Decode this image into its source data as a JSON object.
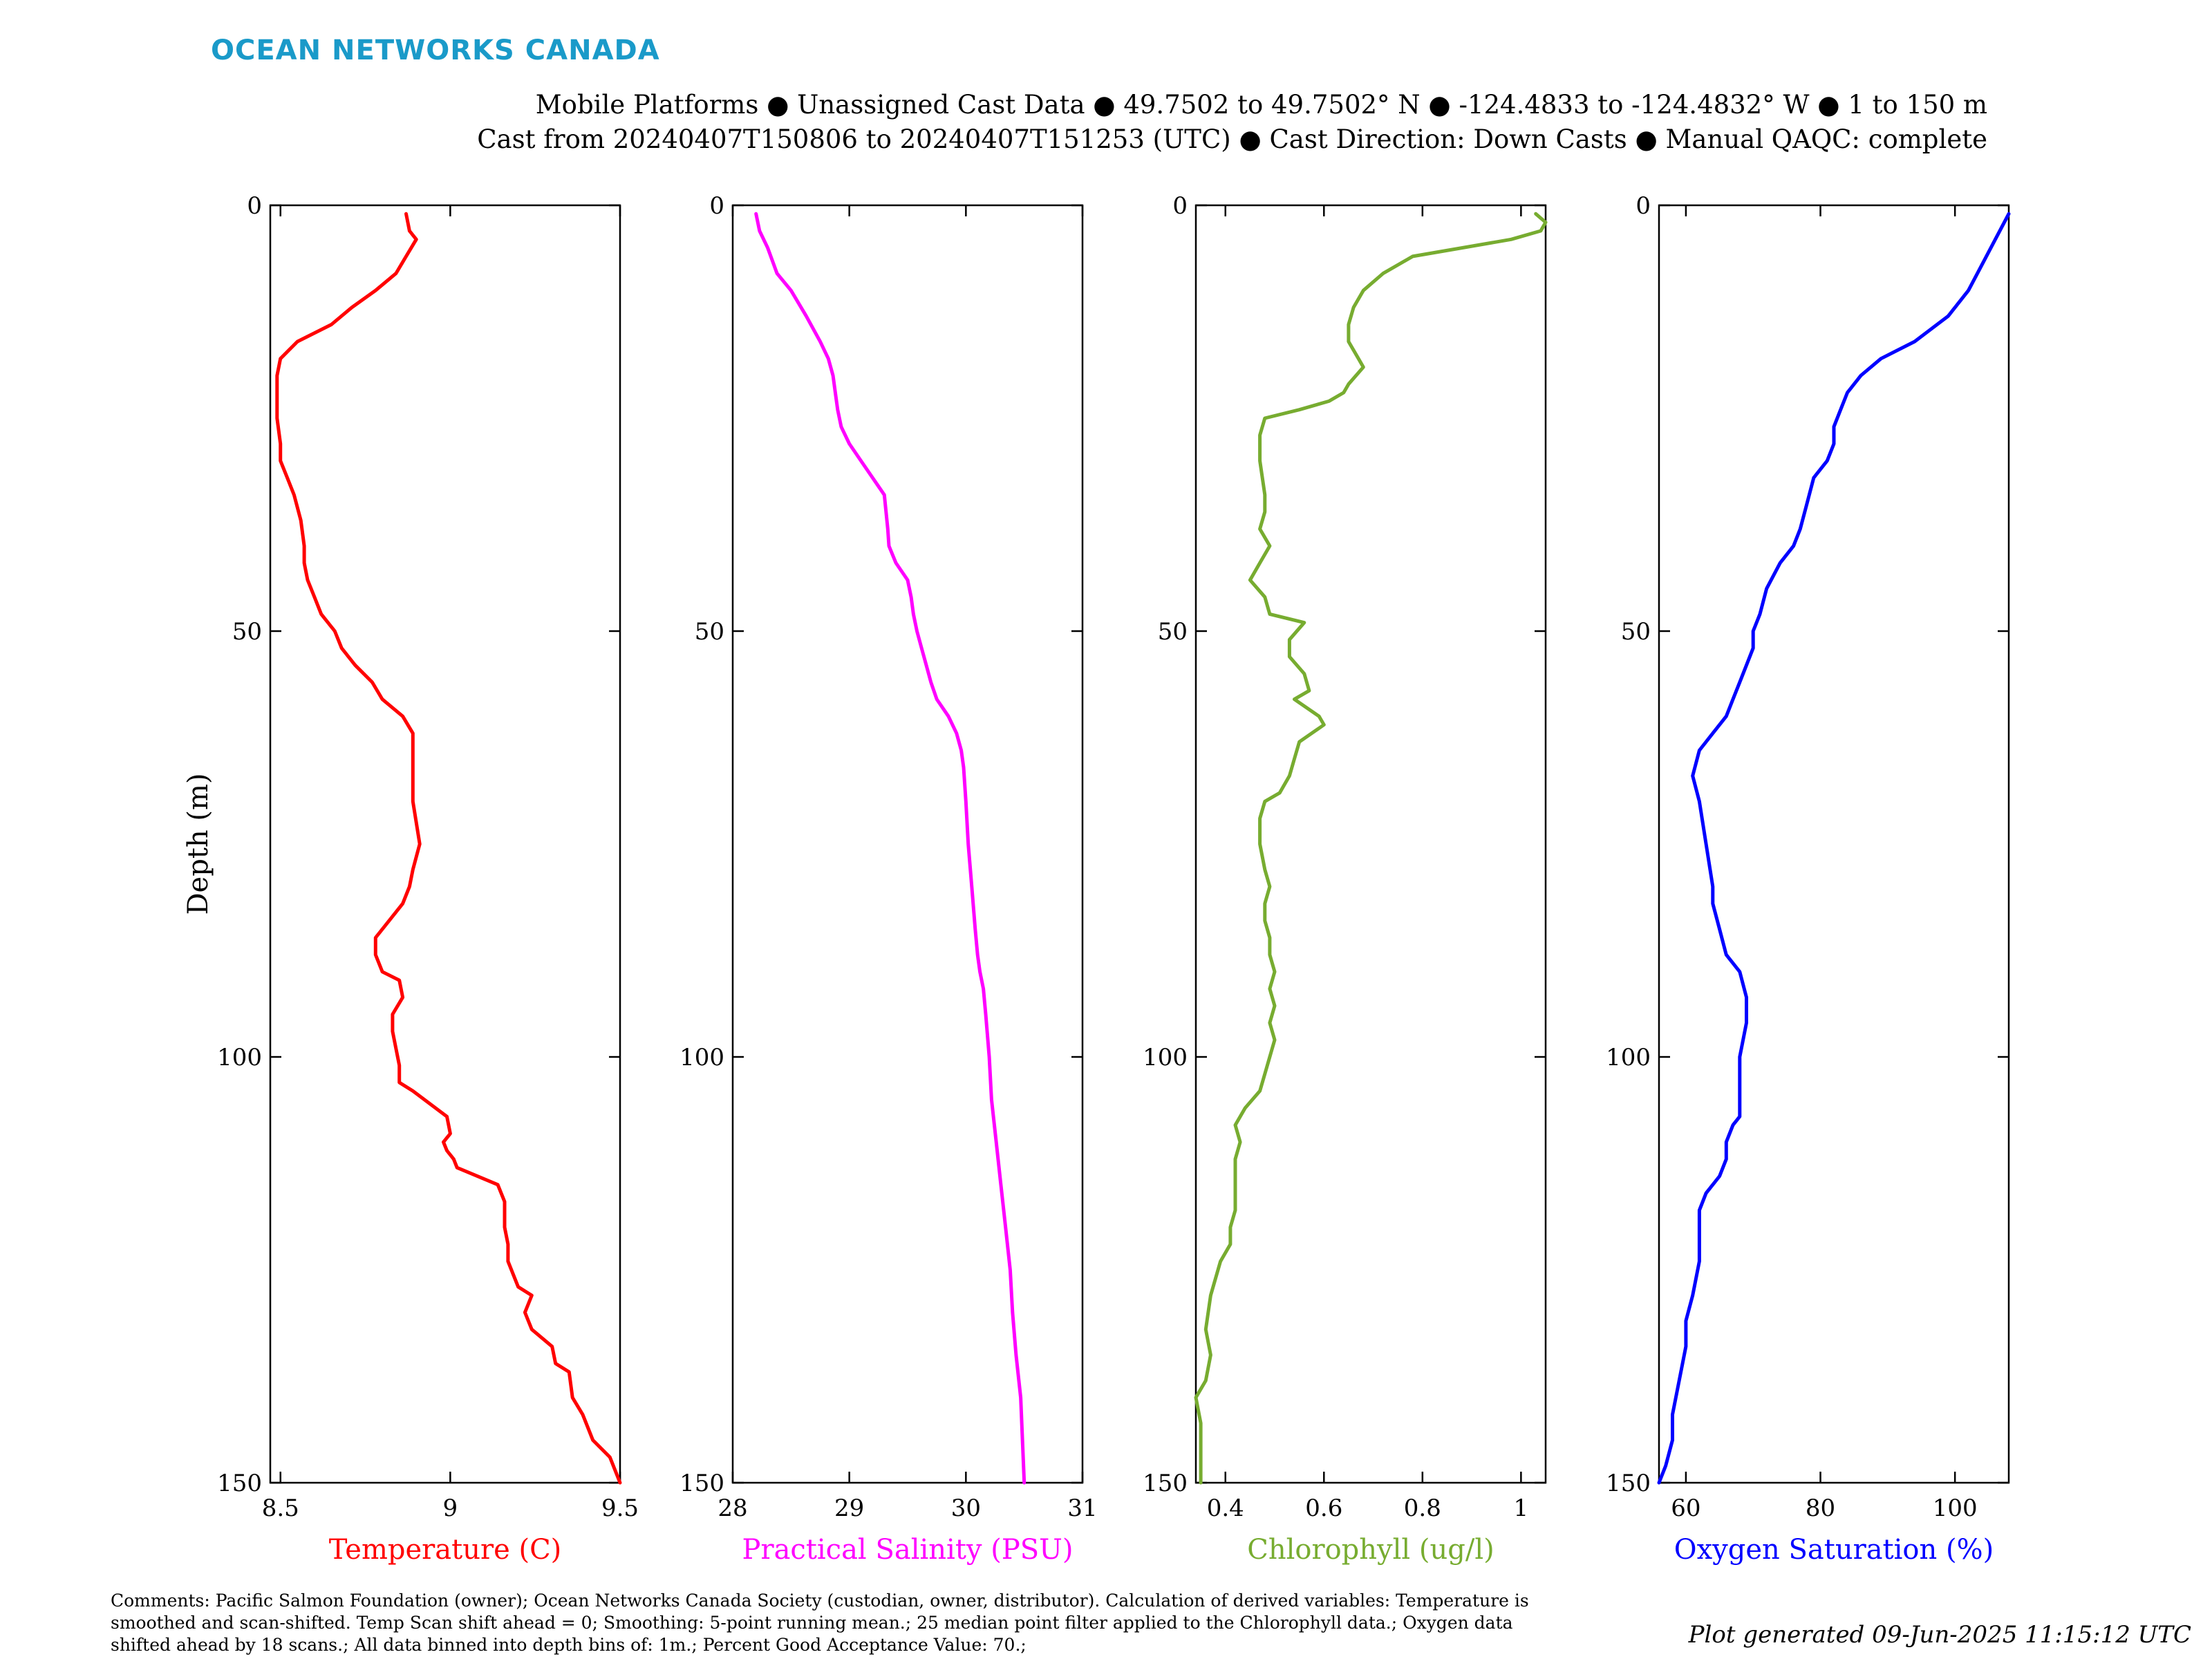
{
  "brand": "OCEAN NETWORKS CANADA",
  "header_line1": "Mobile Platforms ● Unassigned Cast Data ● 49.7502 to 49.7502° N ● -124.4833 to -124.4832° W ● 1 to 150 m",
  "header_line2": "Cast from 20240407T150806 to 20240407T151253 (UTC) ● Cast Direction: Down Casts ● Manual QAQC: complete",
  "comments": "Comments: Pacific Salmon Foundation (owner); Ocean Networks Canada Society (custodian, owner, distributor). Calculation of derived variables: Temperature is smoothed and scan-shifted. Temp Scan shift ahead = 0; Smoothing: 5-point running mean.; 25 median point filter applied to the Chlorophyll data.; Oxygen data shifted ahead by 18 scans.; All data binned into depth bins of: 1m.; Percent Good Acceptance Value: 70.;",
  "generated": "Plot generated 09-Jun-2025 11:15:12 UTC",
  "colors": {
    "brand": "#1a9ac9",
    "temperature": "#ff0000",
    "salinity": "#ff00ff",
    "chlorophyll": "#77ac30",
    "oxygen": "#0000ff"
  },
  "chart_data": [
    {
      "type": "line",
      "xlabel": "Temperature (C)",
      "ylabel": "Depth (m)",
      "color": "#ff0000",
      "xlim": [
        8.47,
        9.5
      ],
      "ylim": [
        0,
        150
      ],
      "y_reversed": true,
      "xticks": [
        8.5,
        9,
        9.5
      ],
      "xticklabels": [
        "8.5",
        "9",
        "9.5"
      ],
      "yticks": [
        0,
        50,
        100,
        150
      ],
      "yticklabels": [
        "0",
        "50",
        "100",
        "150"
      ],
      "x": [
        8.87,
        8.88,
        8.9,
        8.87,
        8.84,
        8.81,
        8.78,
        8.71,
        8.65,
        8.55,
        8.5,
        8.49,
        8.49,
        8.5,
        8.5,
        8.52,
        8.54,
        8.56,
        8.57,
        8.57,
        8.58,
        8.6,
        8.62,
        8.66,
        8.68,
        8.72,
        8.77,
        8.8,
        8.86,
        8.89,
        8.89,
        8.89,
        8.91,
        8.89,
        8.88,
        8.86,
        8.82,
        8.78,
        8.78,
        8.8,
        8.85,
        8.86,
        8.83,
        8.83,
        8.84,
        8.85,
        8.85,
        8.89,
        8.99,
        9.0,
        8.98,
        8.99,
        9.01,
        9.02,
        9.14,
        9.16,
        9.16,
        9.17,
        9.17,
        9.2,
        9.24,
        9.22,
        9.24,
        9.3,
        9.31,
        9.35,
        9.36,
        9.39,
        9.42,
        9.47,
        9.5
      ],
      "y": [
        1,
        3,
        4,
        6,
        8,
        9,
        10,
        12,
        14,
        16,
        18,
        20,
        25,
        28,
        30,
        32,
        34,
        37,
        40,
        42,
        44,
        46,
        48,
        50,
        52,
        54,
        56,
        58,
        60,
        62,
        65,
        70,
        75,
        78,
        80,
        82,
        84,
        86,
        88,
        90,
        91,
        93,
        95,
        97,
        99,
        101,
        103,
        104,
        107,
        109,
        110,
        111,
        112,
        113,
        115,
        117,
        120,
        122,
        124,
        127,
        128,
        130,
        132,
        134,
        136,
        137,
        140,
        142,
        145,
        147,
        150
      ]
    },
    {
      "type": "line",
      "xlabel": "Practical Salinity (PSU)",
      "color": "#ff00ff",
      "xlim": [
        28,
        31
      ],
      "ylim": [
        0,
        150
      ],
      "y_reversed": true,
      "xticks": [
        28,
        29,
        30,
        31
      ],
      "xticklabels": [
        "28",
        "29",
        "30",
        "31"
      ],
      "yticks": [
        0,
        50,
        100,
        150
      ],
      "yticklabels": [
        "0",
        "50",
        "100",
        "150"
      ],
      "x": [
        28.2,
        28.23,
        28.3,
        28.38,
        28.5,
        28.63,
        28.75,
        28.82,
        28.86,
        28.88,
        28.9,
        28.93,
        29.0,
        29.1,
        29.3,
        29.33,
        29.34,
        29.4,
        29.5,
        29.53,
        29.55,
        29.58,
        29.62,
        29.66,
        29.7,
        29.75,
        29.85,
        29.92,
        29.96,
        29.98,
        30.0,
        30.02,
        30.05,
        30.08,
        30.1,
        30.12,
        30.15,
        30.17,
        30.2,
        30.22,
        30.26,
        30.3,
        30.34,
        30.38,
        30.4,
        30.43,
        30.47,
        30.5
      ],
      "y": [
        1,
        3,
        5,
        8,
        10,
        13,
        16,
        18,
        20,
        22,
        24,
        26,
        28,
        30,
        34,
        38,
        40,
        42,
        44,
        46,
        48,
        50,
        52,
        54,
        56,
        58,
        60,
        62,
        64,
        66,
        70,
        75,
        80,
        85,
        88,
        90,
        92,
        95,
        100,
        105,
        110,
        115,
        120,
        125,
        130,
        135,
        140,
        150
      ]
    },
    {
      "type": "line",
      "xlabel": "Chlorophyll (ug/l)",
      "color": "#77ac30",
      "xlim": [
        0.34,
        1.05
      ],
      "ylim": [
        0,
        150
      ],
      "y_reversed": true,
      "xticks": [
        0.4,
        0.6,
        0.8,
        1.0
      ],
      "xticklabels": [
        "0.4",
        "0.6",
        "0.8",
        "1"
      ],
      "yticks": [
        0,
        50,
        100,
        150
      ],
      "yticklabels": [
        "0",
        "50",
        "100",
        "150"
      ],
      "x": [
        1.03,
        1.05,
        1.04,
        0.98,
        0.88,
        0.78,
        0.72,
        0.68,
        0.66,
        0.65,
        0.65,
        0.67,
        0.68,
        0.65,
        0.64,
        0.61,
        0.55,
        0.48,
        0.47,
        0.47,
        0.48,
        0.48,
        0.47,
        0.49,
        0.47,
        0.45,
        0.48,
        0.49,
        0.56,
        0.53,
        0.53,
        0.56,
        0.57,
        0.54,
        0.59,
        0.6,
        0.55,
        0.54,
        0.53,
        0.51,
        0.48,
        0.47,
        0.47,
        0.48,
        0.49,
        0.48,
        0.48,
        0.49,
        0.49,
        0.5,
        0.49,
        0.5,
        0.49,
        0.5,
        0.49,
        0.48,
        0.47,
        0.44,
        0.42,
        0.43,
        0.42,
        0.42,
        0.42,
        0.42,
        0.41,
        0.41,
        0.39,
        0.38,
        0.37,
        0.36,
        0.37,
        0.36,
        0.34,
        0.35,
        0.35,
        0.35
      ],
      "y": [
        1,
        2,
        3,
        4,
        5,
        6,
        8,
        10,
        12,
        14,
        16,
        18,
        19,
        21,
        22,
        23,
        24,
        25,
        27,
        30,
        34,
        36,
        38,
        40,
        42,
        44,
        46,
        48,
        49,
        51,
        53,
        55,
        57,
        58,
        60,
        61,
        63,
        65,
        67,
        69,
        70,
        72,
        75,
        78,
        80,
        82,
        84,
        86,
        88,
        90,
        92,
        94,
        96,
        98,
        100,
        102,
        104,
        106,
        108,
        110,
        112,
        114,
        116,
        118,
        120,
        122,
        124,
        126,
        128,
        132,
        135,
        138,
        140,
        143,
        146,
        150
      ]
    },
    {
      "type": "line",
      "xlabel": "Oxygen Saturation (%)",
      "color": "#0000ff",
      "xlim": [
        56,
        108
      ],
      "ylim": [
        0,
        150
      ],
      "y_reversed": true,
      "xticks": [
        60,
        80,
        100
      ],
      "xticklabels": [
        "60",
        "80",
        "100"
      ],
      "yticks": [
        0,
        50,
        100,
        150
      ],
      "yticklabels": [
        "0",
        "50",
        "100",
        "150"
      ],
      "x": [
        108,
        106,
        104,
        102,
        99,
        94,
        89,
        86,
        84,
        83,
        82,
        82,
        81,
        79,
        78,
        77,
        76,
        74,
        72,
        71,
        70,
        70,
        69,
        68,
        67,
        66,
        64,
        62,
        61,
        62,
        63,
        64,
        64,
        65,
        66,
        68,
        69,
        69,
        68,
        68,
        68,
        68,
        67,
        66,
        66,
        65,
        63,
        62,
        62,
        62,
        61,
        60,
        60,
        59,
        58,
        58,
        57,
        56
      ],
      "y": [
        1,
        4,
        7,
        10,
        13,
        16,
        18,
        20,
        22,
        24,
        26,
        28,
        30,
        32,
        35,
        38,
        40,
        42,
        45,
        48,
        50,
        52,
        54,
        56,
        58,
        60,
        62,
        64,
        67,
        70,
        75,
        80,
        82,
        85,
        88,
        90,
        93,
        96,
        100,
        103,
        105,
        107,
        108,
        110,
        112,
        114,
        116,
        118,
        120,
        124,
        128,
        131,
        134,
        138,
        142,
        145,
        148,
        150
      ]
    }
  ]
}
